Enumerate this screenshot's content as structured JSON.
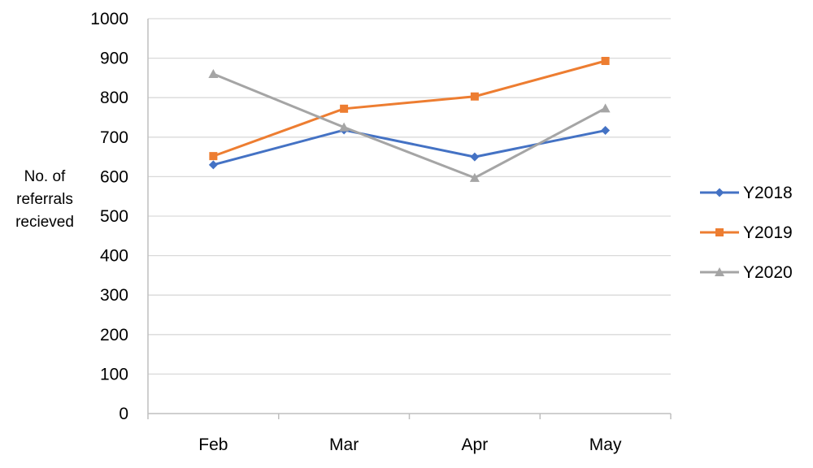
{
  "chart_data": {
    "type": "line",
    "categories": [
      "Feb",
      "Mar",
      "Apr",
      "May"
    ],
    "series": [
      {
        "name": "Y2018",
        "values": [
          630,
          718,
          650,
          717
        ],
        "color": "#4472C4",
        "marker": "diamond"
      },
      {
        "name": "Y2019",
        "values": [
          652,
          772,
          803,
          893
        ],
        "color": "#ED7D31",
        "marker": "square"
      },
      {
        "name": "Y2020",
        "values": [
          860,
          725,
          597,
          773
        ],
        "color": "#A5A5A5",
        "marker": "triangle"
      }
    ],
    "ylabel_lines": [
      "No. of",
      "referrals",
      "recieved"
    ],
    "ylim": [
      0,
      1000
    ],
    "ytick_step": 100,
    "grid": true,
    "legend_position": "right"
  }
}
